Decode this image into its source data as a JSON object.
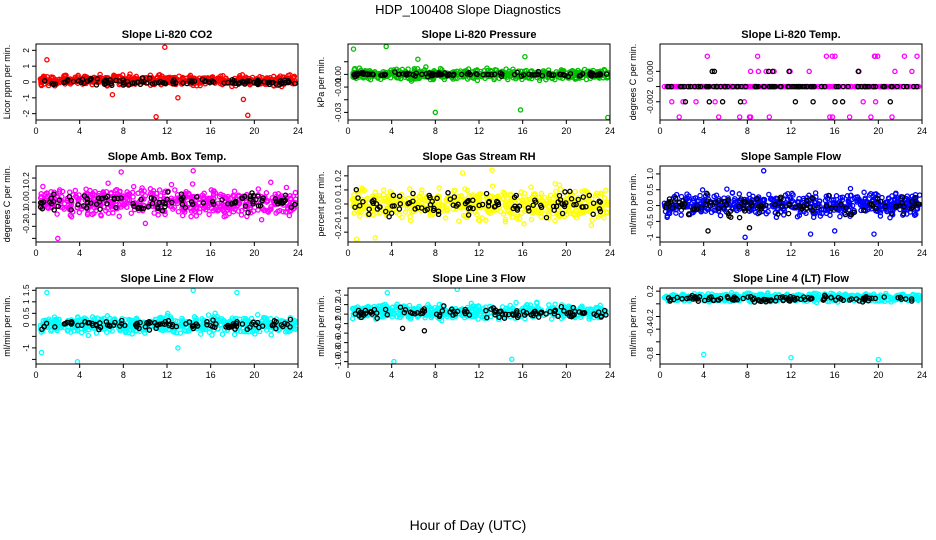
{
  "figure": {
    "title": "HDP_100408  Slope Diagnostics",
    "xlabel": "Hour of Day (UTC)",
    "colors": {
      "overlay": "#000000",
      "axis": "#000000",
      "background": "#ffffff"
    }
  },
  "chart_data": [
    {
      "type": "scatter",
      "title": "Slope Li-820 CO2",
      "ylabel": "Licor ppm per min.",
      "xlim": [
        0,
        24
      ],
      "x_ticks": [
        0,
        4,
        8,
        12,
        16,
        20,
        24
      ],
      "ylim": [
        -2.4,
        2.4
      ],
      "y_ticks": [
        -2,
        -1,
        0,
        1,
        2
      ],
      "y_tick_labels": [
        "-2",
        "-1",
        "0",
        "1",
        "2"
      ],
      "grid": false,
      "series": [
        {
          "color": "#ff0000",
          "center": 0.1,
          "spread": 0.3,
          "n": 540,
          "outliers": [
            [
              1.0,
              1.4
            ],
            [
              11.8,
              2.2
            ],
            [
              11.0,
              -2.2
            ],
            [
              19.4,
              -2.1
            ],
            [
              13.0,
              -1.0
            ],
            [
              19.0,
              -1.1
            ],
            [
              7.0,
              -0.8
            ]
          ]
        },
        {
          "color": "#000000",
          "center": 0.0,
          "spread": 0.2,
          "n": 110
        }
      ]
    },
    {
      "type": "scatter",
      "title": "Slope Li-820 Pressure",
      "ylabel": "kPa per min.",
      "xlim": [
        0,
        24
      ],
      "x_ticks": [
        0,
        4,
        8,
        12,
        16,
        20,
        24
      ],
      "ylim": [
        -0.036,
        0.024
      ],
      "y_ticks": [
        -0.03,
        -0.02,
        -0.01,
        0.0,
        0.01
      ],
      "y_tick_labels": [
        "-0.03",
        "",
        "-0.01",
        "0.00",
        ""
      ],
      "grid": false,
      "series": [
        {
          "color": "#00c000",
          "center": 0.0,
          "spread": 0.004,
          "n": 520,
          "outliers": [
            [
              0.5,
              0.02
            ],
            [
              3.5,
              0.022
            ],
            [
              8.0,
              -0.03
            ],
            [
              15.8,
              -0.028
            ],
            [
              23.8,
              -0.034
            ],
            [
              16.2,
              0.014
            ],
            [
              6.4,
              0.012
            ]
          ]
        },
        {
          "color": "#000000",
          "center": 0.0,
          "spread": 0.0015,
          "n": 110
        }
      ]
    },
    {
      "type": "scatter",
      "title": "Slope Li-820 Temp.",
      "ylabel": "degrees C per min.",
      "xlim": [
        0,
        24
      ],
      "x_ticks": [
        0,
        4,
        8,
        12,
        16,
        20,
        24
      ],
      "ylim": [
        -0.0032,
        0.0018
      ],
      "y_ticks": [
        -0.002,
        -0.001,
        0.0
      ],
      "y_tick_labels": [
        "-0.002",
        "",
        "0.000"
      ],
      "grid": false,
      "series": [
        {
          "color": "#ff00ff",
          "levels": [
            0.0,
            -0.001,
            -0.002,
            0.001,
            -0.003
          ],
          "center": -0.001,
          "n": 320
        },
        {
          "color": "#000000",
          "levels": [
            0.0,
            -0.001,
            -0.002
          ],
          "center": -0.001,
          "n": 110
        }
      ]
    },
    {
      "type": "scatter",
      "title": "Slope Amb. Box Temp.",
      "ylabel": "degrees C per min.",
      "xlim": [
        0,
        24
      ],
      "x_ticks": [
        0,
        4,
        8,
        12,
        16,
        20,
        24
      ],
      "ylim": [
        -0.33,
        0.3
      ],
      "y_ticks": [
        -0.3,
        -0.2,
        -0.1,
        0.0,
        0.1,
        0.2
      ],
      "y_tick_labels": [
        "",
        "-0.2",
        "-0.1",
        "0.0",
        "0.1",
        "0.2"
      ],
      "grid": false,
      "series": [
        {
          "color": "#ff00ff",
          "center": 0.0,
          "spread": 0.11,
          "n": 540,
          "outliers": [
            [
              2.0,
              -0.3
            ],
            [
              7.8,
              0.25
            ],
            [
              14.4,
              0.26
            ]
          ]
        },
        {
          "color": "#000000",
          "center": 0.0,
          "spread": 0.07,
          "n": 110
        }
      ]
    },
    {
      "type": "scatter",
      "title": "Slope Gas Stream RH",
      "ylabel": "percent per min.",
      "xlim": [
        0,
        24
      ],
      "x_ticks": [
        0,
        4,
        8,
        12,
        16,
        20,
        24
      ],
      "ylim": [
        -0.27,
        0.27
      ],
      "y_ticks": [
        -0.2,
        -0.1,
        0.0,
        0.1,
        0.2
      ],
      "y_tick_labels": [
        "-0.2",
        "-0.1",
        "0.0",
        "0.1",
        "0.2"
      ],
      "grid": false,
      "series": [
        {
          "color": "#ffff00",
          "center": 0.0,
          "spread": 0.1,
          "n": 540,
          "outliers": [
            [
              0.8,
              -0.25
            ],
            [
              2.5,
              -0.24
            ],
            [
              10.5,
              0.22
            ],
            [
              13.2,
              0.24
            ]
          ]
        },
        {
          "color": "#000000",
          "center": 0.0,
          "spread": 0.08,
          "n": 110
        }
      ]
    },
    {
      "type": "scatter",
      "title": "Slope Sample Flow",
      "ylabel": "ml/min per min.",
      "xlim": [
        0,
        24
      ],
      "x_ticks": [
        0,
        4,
        8,
        12,
        16,
        20,
        24
      ],
      "ylim": [
        -1.15,
        1.25
      ],
      "y_ticks": [
        -1,
        -0.5,
        0,
        0.5,
        1
      ],
      "y_tick_labels": [
        "-1",
        "-0.5",
        "0.0",
        "0.5",
        "1.0"
      ],
      "grid": false,
      "series": [
        {
          "color": "#0000ff",
          "center": 0.05,
          "spread": 0.35,
          "n": 540,
          "outliers": [
            [
              7.8,
              -1.0
            ],
            [
              9.5,
              1.1
            ],
            [
              13.8,
              -0.9
            ],
            [
              16.0,
              -0.8
            ],
            [
              19.6,
              -0.9
            ]
          ]
        },
        {
          "color": "#000000",
          "center": 0.0,
          "spread": 0.3,
          "n": 110,
          "outliers": [
            [
              4.4,
              -0.8
            ],
            [
              8.2,
              -0.7
            ]
          ]
        }
      ]
    },
    {
      "type": "scatter",
      "title": "Slope Line 2 Flow",
      "ylabel": "ml/min per min.",
      "xlim": [
        0,
        24
      ],
      "x_ticks": [
        0,
        4,
        8,
        12,
        16,
        20,
        24
      ],
      "ylim": [
        -1.7,
        1.6
      ],
      "y_ticks": [
        -1.5,
        -1,
        -0.5,
        0,
        0.5,
        1,
        1.5
      ],
      "y_tick_labels": [
        "",
        "-1",
        "",
        "0",
        "0.5",
        "1",
        "1.5"
      ],
      "grid": false,
      "series": [
        {
          "color": "#00ffff",
          "center": 0.0,
          "spread": 0.35,
          "n": 540,
          "outliers": [
            [
              1.0,
              1.4
            ],
            [
              3.8,
              -1.6
            ],
            [
              14.4,
              1.5
            ],
            [
              18.4,
              1.4
            ],
            [
              0.5,
              -1.2
            ],
            [
              13.0,
              -1.0
            ]
          ]
        },
        {
          "color": "#000000",
          "center": 0.0,
          "spread": 0.2,
          "n": 110
        }
      ]
    },
    {
      "type": "scatter",
      "title": "Slope Line 3 Flow",
      "ylabel": "ml/min per min.",
      "xlim": [
        0,
        24
      ],
      "x_ticks": [
        0,
        4,
        8,
        12,
        16,
        20,
        24
      ],
      "ylim": [
        -1.05,
        0.55
      ],
      "y_ticks": [
        -1,
        -0.8,
        -0.6,
        -0.4,
        -0.2,
        0,
        0.2,
        0.4
      ],
      "y_tick_labels": [
        "-1.0",
        "-0.8",
        "-0.6",
        "-0.4",
        "-0.2",
        "0.0",
        "0.2",
        "0.4"
      ],
      "grid": false,
      "series": [
        {
          "color": "#00ffff",
          "center": 0.05,
          "spread": 0.14,
          "n": 540,
          "outliers": [
            [
              4.2,
              -1.0
            ],
            [
              15.0,
              -0.95
            ],
            [
              3.6,
              0.45
            ],
            [
              10.0,
              0.52
            ]
          ]
        },
        {
          "color": "#000000",
          "center": 0.02,
          "spread": 0.1,
          "n": 110,
          "outliers": [
            [
              5.0,
              -0.3
            ],
            [
              7.0,
              -0.35
            ]
          ]
        }
      ]
    },
    {
      "type": "scatter",
      "title": "Slope Line 4 (LT) Flow",
      "ylabel": "ml/min per min.",
      "xlim": [
        0,
        24
      ],
      "x_ticks": [
        0,
        4,
        8,
        12,
        16,
        20,
        24
      ],
      "ylim": [
        -0.95,
        0.25
      ],
      "y_ticks": [
        -0.8,
        -0.6,
        -0.4,
        -0.2,
        0,
        0.2
      ],
      "y_tick_labels": [
        "-0.8",
        "",
        "-0.4",
        "-0.2",
        "",
        "0.2"
      ],
      "grid": false,
      "series": [
        {
          "color": "#00ffff",
          "center": 0.1,
          "spread": 0.06,
          "n": 540,
          "outliers": [
            [
              4.0,
              -0.8
            ],
            [
              12.0,
              -0.85
            ],
            [
              20.0,
              -0.88
            ]
          ]
        },
        {
          "color": "#000000",
          "center": 0.08,
          "spread": 0.05,
          "n": 110
        }
      ]
    }
  ]
}
